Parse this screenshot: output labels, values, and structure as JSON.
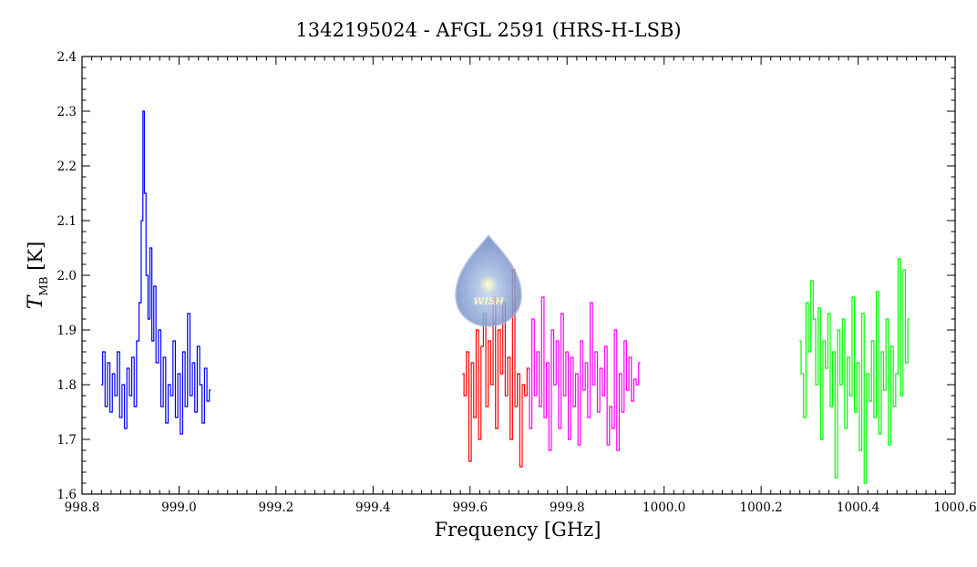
{
  "chart_data": {
    "type": "line",
    "title": "1342195024 - AFGL 2591 (HRS-H-LSB)",
    "xlabel": "Frequency [GHz]",
    "ylabel_main": "T",
    "ylabel_sub": "MB",
    "ylabel_unit": "[K]",
    "xlim": [
      998.8,
      1000.6
    ],
    "ylim": [
      1.6,
      2.4
    ],
    "x_ticks": [
      998.8,
      999.0,
      999.2,
      999.4,
      999.6,
      999.8,
      1000.0,
      1000.2,
      1000.4,
      1000.6
    ],
    "x_tick_labels": [
      "998.8",
      "999.0",
      "999.2",
      "999.4",
      "999.6",
      "999.8",
      "1000.0",
      "1000.2",
      "1000.4",
      "1000.6"
    ],
    "y_ticks": [
      1.6,
      1.7,
      1.8,
      1.9,
      2.0,
      2.1,
      2.2,
      2.3,
      2.4
    ],
    "y_tick_labels": [
      "1.6",
      "1.7",
      "1.8",
      "1.9",
      "2.0",
      "2.1",
      "2.2",
      "2.3",
      "2.4"
    ],
    "grid": false,
    "logo_text": "WISH",
    "series": [
      {
        "color": "#0000ff",
        "x": [
          998.84,
          998.845,
          998.85,
          998.855,
          998.86,
          998.865,
          998.87,
          998.875,
          998.88,
          998.885,
          998.89,
          998.895,
          998.9,
          998.905,
          998.91,
          998.915,
          998.92,
          998.924,
          998.927,
          998.93,
          998.934,
          998.938,
          998.942,
          998.946,
          998.95,
          998.955,
          998.96,
          998.965,
          998.97,
          998.975,
          998.98,
          998.985,
          998.99,
          998.995,
          999.0,
          999.005,
          999.01,
          999.015,
          999.02,
          999.025,
          999.03,
          999.035,
          999.04,
          999.045,
          999.05,
          999.055,
          999.06,
          999.065
        ],
        "y": [
          1.8,
          1.86,
          1.76,
          1.84,
          1.75,
          1.82,
          1.78,
          1.86,
          1.74,
          1.8,
          1.72,
          1.83,
          1.78,
          1.85,
          1.76,
          1.88,
          1.95,
          2.1,
          2.3,
          2.15,
          2.0,
          1.92,
          2.05,
          1.88,
          1.98,
          1.84,
          1.9,
          1.76,
          1.85,
          1.73,
          1.8,
          1.78,
          1.88,
          1.74,
          1.82,
          1.71,
          1.86,
          1.76,
          1.93,
          1.78,
          1.84,
          1.75,
          1.87,
          1.8,
          1.73,
          1.83,
          1.77,
          1.79
        ]
      },
      {
        "color": "#ff0000",
        "x": [
          999.585,
          999.59,
          999.595,
          999.6,
          999.605,
          999.61,
          999.615,
          999.62,
          999.625,
          999.63,
          999.635,
          999.64,
          999.645,
          999.65,
          999.655,
          999.66,
          999.665,
          999.67,
          999.675,
          999.68,
          999.685,
          999.69,
          999.695,
          999.7,
          999.705,
          999.71,
          999.715,
          999.72
        ],
        "y": [
          1.82,
          1.78,
          1.86,
          1.66,
          1.84,
          1.74,
          1.9,
          1.7,
          1.87,
          1.93,
          1.76,
          1.88,
          1.8,
          1.96,
          1.72,
          1.9,
          1.82,
          1.95,
          1.78,
          1.85,
          1.7,
          2.01,
          1.76,
          1.82,
          1.65,
          1.8,
          1.78,
          1.83
        ]
      },
      {
        "color": "#ff00ff",
        "x": [
          999.72,
          999.725,
          999.73,
          999.735,
          999.74,
          999.745,
          999.75,
          999.755,
          999.76,
          999.765,
          999.77,
          999.775,
          999.78,
          999.785,
          999.79,
          999.795,
          999.8,
          999.805,
          999.81,
          999.815,
          999.82,
          999.825,
          999.83,
          999.835,
          999.84,
          999.845,
          999.85,
          999.855,
          999.86,
          999.865,
          999.87,
          999.875,
          999.88,
          999.885,
          999.89,
          999.895,
          999.9,
          999.905,
          999.91,
          999.915,
          999.92,
          999.925,
          999.93,
          999.935,
          999.94,
          999.945,
          999.95
        ],
        "y": [
          1.83,
          1.72,
          1.92,
          1.78,
          1.86,
          1.76,
          1.96,
          1.74,
          1.84,
          1.68,
          1.9,
          1.8,
          1.88,
          1.72,
          1.93,
          1.78,
          1.86,
          1.7,
          1.85,
          1.76,
          1.82,
          1.69,
          1.88,
          1.79,
          1.84,
          1.74,
          1.95,
          1.8,
          1.86,
          1.75,
          1.83,
          1.78,
          1.87,
          1.69,
          1.76,
          1.72,
          1.9,
          1.68,
          1.82,
          1.75,
          1.88,
          1.79,
          1.85,
          1.77,
          1.81,
          1.8,
          1.84
        ]
      },
      {
        "color": "#00ff00",
        "x": [
          1000.28,
          1000.285,
          1000.29,
          1000.295,
          1000.3,
          1000.305,
          1000.31,
          1000.315,
          1000.32,
          1000.325,
          1000.33,
          1000.335,
          1000.34,
          1000.345,
          1000.35,
          1000.355,
          1000.36,
          1000.365,
          1000.37,
          1000.375,
          1000.38,
          1000.385,
          1000.39,
          1000.395,
          1000.4,
          1000.405,
          1000.41,
          1000.415,
          1000.42,
          1000.425,
          1000.43,
          1000.435,
          1000.44,
          1000.445,
          1000.45,
          1000.455,
          1000.46,
          1000.465,
          1000.47,
          1000.475,
          1000.48,
          1000.485,
          1000.49,
          1000.495,
          1000.5,
          1000.505
        ],
        "y": [
          1.88,
          1.82,
          1.74,
          1.95,
          1.86,
          1.99,
          1.92,
          1.8,
          1.94,
          1.7,
          1.88,
          1.83,
          1.93,
          1.76,
          1.86,
          1.63,
          1.9,
          1.8,
          1.92,
          1.72,
          1.85,
          1.78,
          1.96,
          1.75,
          1.84,
          1.68,
          1.93,
          1.62,
          1.82,
          1.77,
          1.88,
          1.74,
          1.97,
          1.71,
          1.86,
          1.79,
          1.92,
          1.69,
          1.87,
          1.76,
          1.82,
          2.03,
          1.78,
          2.01,
          1.84,
          1.92
        ]
      }
    ]
  }
}
